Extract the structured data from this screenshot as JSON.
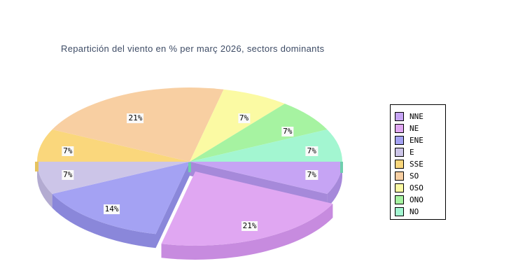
{
  "page": {
    "background": "#ffffff"
  },
  "chart_data": {
    "type": "pie",
    "is_3d": true,
    "title": "Repartición del viento en % per març 2026, sectors dominants",
    "title_color": "#3e4c66",
    "categories": [
      "NNE",
      "NE",
      "ENE",
      "E",
      "SSE",
      "SO",
      "OSO",
      "ONO",
      "NO"
    ],
    "values": [
      7,
      21,
      14,
      7,
      7,
      21,
      7,
      7,
      7
    ],
    "unit": "%",
    "slice_labels": [
      "7%",
      "21%",
      "14%",
      "7%",
      "7%",
      "21%",
      "7%",
      "7%",
      "7%"
    ],
    "exploded_index": 1,
    "start_angle_deg": 0,
    "direction": "clockwise",
    "legend_position": "right",
    "grid": false,
    "colors": {
      "top": [
        "#c6a4f4",
        "#e0a7f2",
        "#a4a2f3",
        "#ccc5e8",
        "#fad77c",
        "#f8cfa2",
        "#fbfaa3",
        "#a6f3a1",
        "#a3f6d1"
      ],
      "side": [
        "#a689da",
        "#c78bdf",
        "#8a87da",
        "#b3abd1",
        "#e6c35f",
        "#e0b488",
        "#e3e287",
        "#84dd83",
        "#6fcfae"
      ],
      "label_bg": "#fafafa",
      "label_text": "#000000",
      "legend_border": "#000000",
      "legend_bg": "#ffffff"
    }
  },
  "legend": {
    "entries": [
      "NNE",
      "NE",
      "ENE",
      "E",
      "SSE",
      "SO",
      "OSO",
      "ONO",
      "NO"
    ]
  }
}
